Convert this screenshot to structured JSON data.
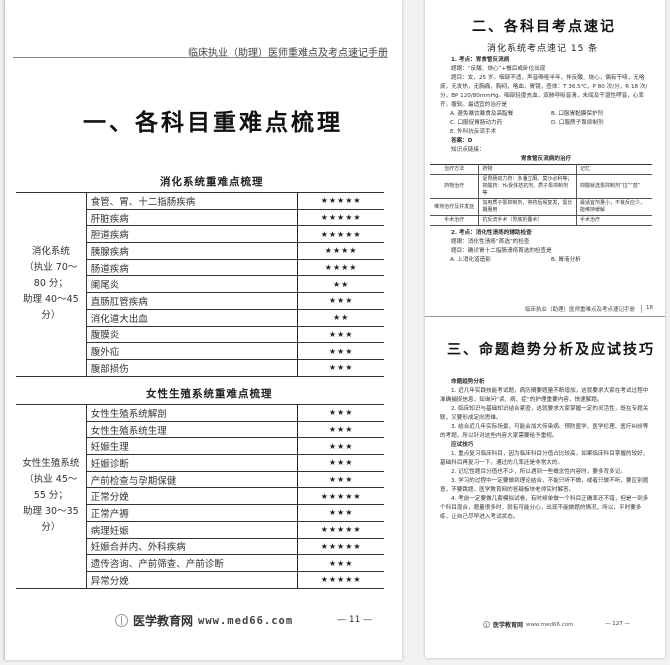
{
  "left_page": {
    "running_header": "临床执业（助理）医师重难点及考点速记手册",
    "chapter_title": "一、各科目重难点梳理",
    "tables": [
      {
        "caption": "消化系统重难点梳理",
        "group": [
          "消化系统",
          "（执业 70～80 分；",
          "助理 40～45 分）"
        ],
        "rows": [
          {
            "topic": "食管、胃、十二指肠疾病",
            "stars": "★★★★★"
          },
          {
            "topic": "肝脏疾病",
            "stars": "★★★★★"
          },
          {
            "topic": "胆道疾病",
            "stars": "★★★★★"
          },
          {
            "topic": "胰腺疾病",
            "stars": "★★★★"
          },
          {
            "topic": "肠道疾病",
            "stars": "★★★★"
          },
          {
            "topic": "阑尾炎",
            "stars": "★★"
          },
          {
            "topic": "直肠肛管疾病",
            "stars": "★★★"
          },
          {
            "topic": "消化道大出血",
            "stars": "★★"
          },
          {
            "topic": "腹膜炎",
            "stars": "★★★"
          },
          {
            "topic": "腹外疝",
            "stars": "★★★"
          },
          {
            "topic": "腹部损伤",
            "stars": "★★★"
          }
        ]
      },
      {
        "caption": "女性生殖系统重难点梳理",
        "group": [
          "女性生殖系统",
          "（执业 45～55 分；",
          "助理 30～35 分）"
        ],
        "rows": [
          {
            "topic": "女性生殖系统解剖",
            "stars": "★★★"
          },
          {
            "topic": "女性生殖系统生理",
            "stars": "★★★"
          },
          {
            "topic": "妊娠生理",
            "stars": "★★★"
          },
          {
            "topic": "妊娠诊断",
            "stars": "★★★"
          },
          {
            "topic": "产前检查与孕期保健",
            "stars": "★★★"
          },
          {
            "topic": "正常分娩",
            "stars": "★★★★★"
          },
          {
            "topic": "正常产褥",
            "stars": "★★★"
          },
          {
            "topic": "病理妊娠",
            "stars": "★★★★★"
          },
          {
            "topic": "妊娠合并内、外科疾病",
            "stars": "★★★★★"
          },
          {
            "topic": "遗传咨询、产前筛查、产前诊断",
            "stars": "★★★"
          },
          {
            "topic": "异常分娩",
            "stars": "★★★★★"
          }
        ]
      }
    ],
    "footer": {
      "brand": "医学教育网",
      "url": "www.med66.com",
      "page": "— 11 —"
    }
  },
  "right_top_page": {
    "chapter_title": "二、各科目考点速记",
    "subtitle": "消化系统考点速记 15 条",
    "q1": {
      "heading": "1. 考点：胃食管反流病",
      "key": "题眼：“反酸、烧心”+餐后或卧位出现",
      "stem": "题目：女，25 岁。咽部不适，声音嘶哑半年，伴反酸、烧心，偶有干咳，无咯痰，无发热，无胸痛，胸闷，咯血，胃镜，查体：T 36.5℃，P 80 次/分，R 18 次/分，BP 120/80mmHg。咽部轻度充血，双肺呼吸音清，未闻及干湿性啰音，心率齐，腹软。最适宜的治疗是",
      "options": [
        "A. 避免暴饮暴食及高脂餐",
        "B. 口服胃黏膜保护剂",
        "C. 口服促胃肠动力药",
        "D. 口服质子泵抑制剂",
        "E. 外科抗反流手术"
      ],
      "answer": "答案：D",
      "link": "知识点链接：",
      "table": {
        "caption": "胃食管反流病的治疗",
        "headers": [
          "治疗方法",
          "药物",
          "记忆"
        ],
        "rows": [
          [
            "药物治疗",
            "促胃肠动力药：多潘立酮、莫沙必利等；抑酸药：H₂受体拮抗剂、质子泵抑制剂等",
            "抑酸就选泵抑制剂“拉”“替”"
          ],
          [
            "维持治疗及并发症",
            "加用质子泵抑制剂，停药后易复发，需长期服用",
            "最适宜剂量小，不良反应少，能维持缓解"
          ],
          [
            "手术治疗",
            "抗反流手术（胃底折叠术）",
            "手术治疗"
          ]
        ]
      }
    },
    "q2": {
      "heading": "2. 考点：消化性溃疡的辅助检查",
      "key": "题眼：消化性溃疡“首选”的检查",
      "stem": "题目：确诊胃十二指肠溃疡首选的检查是",
      "options": [
        "A. 上消化道造影",
        "B. 胃液分析"
      ]
    },
    "running_footer": "临床执业（助理）医师重难点及考点速记手册",
    "running_page": "18"
  },
  "right_bottom_page": {
    "chapter_title": "三、命题趋势分析及应试技巧",
    "sec1": "命题趋势分析",
    "sec1_items": [
      "1. 近几年实践技能考试题，病历摘要题量不断增加，这就要求大家在考试过程中准确捕捉信息，如询问“读、病、症”的护理重要内容，快速解题。",
      "2. 临床知识与基础知识结合紧密，这就要求大家掌握一定的灵活性，既在专题关联，又要形成定向思维。",
      "3. 结合近几年实际场景，可能会加大传染病、预防医学、医学伦理、医疗纠纷等的考题，所以针对这些内容大家需要给予重视。"
    ],
    "sec2": "应试技巧",
    "sec2_items": [
      "1. 重点复习临床科目，因为临床科目分值占比较高，如果临床科目掌握的较好，基础科目再复习一下，通过的几率还是非常大的。",
      "2. 记忆性题目分值也不少，所以遇到一些概念性内容时，要多背多记。",
      "3. 学习的过程中一定要做到理论结合，不能只听不做，或者只做不听，要区别题意，不要跳题，医学教育网的答疑板块老师实时解答。",
      "4. 考前一定要做几套模拟试卷，有时候单做一个科目正确率还不错，但是一到多个科目混合，题量很多时，就有可能分心，出现不能做题的情况，所以，平时要多练，让自己尽早进入考试状态。"
    ],
    "footer": {
      "brand": "医学教育网",
      "url": "www.med66.com",
      "page": "— 127 —"
    }
  }
}
